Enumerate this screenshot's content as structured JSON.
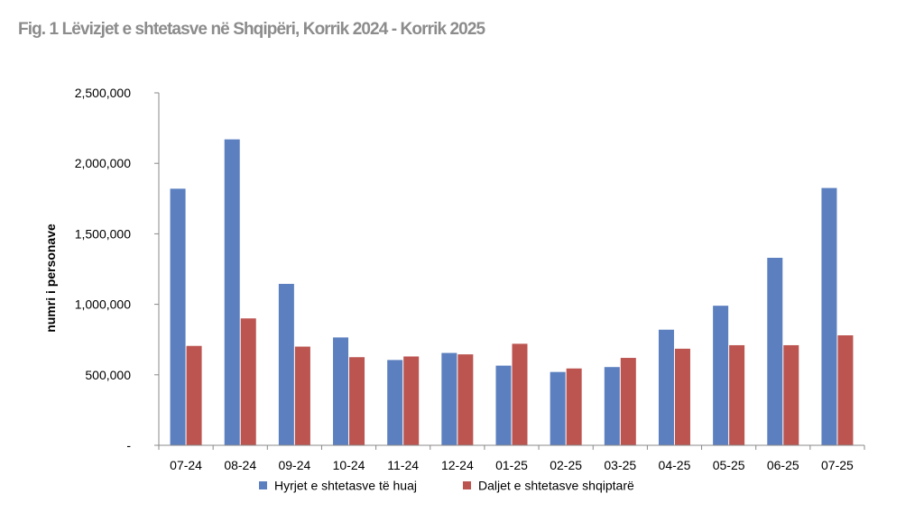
{
  "title": "Fig. 1 Lëvizjet e shtetasve në Shqipëri, Korrik 2024 - Korrik 2025",
  "chart_data": {
    "type": "bar",
    "ylabel": "numri i personave",
    "xlabel": "",
    "ylim": [
      0,
      2500000
    ],
    "yticks": [
      0,
      500000,
      1000000,
      1500000,
      2000000,
      2500000
    ],
    "ytick_labels": [
      "-",
      "500,000",
      "1,000,000",
      "1,500,000",
      "2,000,000",
      "2,500,000"
    ],
    "grid": false,
    "legend_position": "bottom",
    "categories": [
      "07-24",
      "08-24",
      "09-24",
      "10-24",
      "11-24",
      "12-24",
      "01-25",
      "02-25",
      "03-25",
      "04-25",
      "05-25",
      "06-25",
      "07-25"
    ],
    "series": [
      {
        "name": "Hyrjet e shtetasve të huaj",
        "color": "#5b7fbf",
        "values": [
          1820000,
          2170000,
          1145000,
          765000,
          605000,
          655000,
          565000,
          520000,
          555000,
          820000,
          990000,
          1330000,
          1825000
        ]
      },
      {
        "name": "Daljet e shtetasve shqiptarë",
        "color": "#bc5450",
        "values": [
          705000,
          900000,
          700000,
          625000,
          630000,
          645000,
          720000,
          545000,
          620000,
          685000,
          710000,
          710000,
          780000
        ]
      }
    ]
  }
}
